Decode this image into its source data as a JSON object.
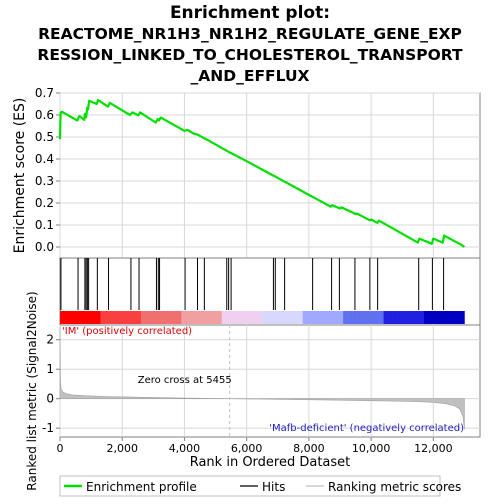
{
  "chart_data": {
    "type": "line",
    "title": "Enrichment plot:\nREACTOME_NR1H3_NR1H2_REGULATE_GENE_EXP\nRESSION_LINKED_TO_CHOLESTEROL_TRANSPORT\n_AND_EFFLUX",
    "title_lines": [
      "Enrichment plot:",
      "REACTOME_NR1H3_NR1H2_REGULATE_GENE_EXP",
      "RESSION_LINKED_TO_CHOLESTEROL_TRANSPORT",
      "_AND_EFFLUX"
    ],
    "xlabel": "Rank in Ordered Dataset",
    "xlim": [
      0,
      13500
    ],
    "x_ticks": [
      0,
      2000,
      4000,
      6000,
      8000,
      10000,
      12000
    ],
    "x_tick_labels": [
      "0",
      "2,000",
      "4,000",
      "6,000",
      "8,000",
      "10,000",
      "12,000"
    ],
    "colors": {
      "enrichment": "#00e000",
      "hits": "#000000",
      "metric_fill": "#c0c0c0",
      "grid": "#d8d8d8",
      "axis": "#808080",
      "zero_line": "#c0c0c0",
      "pos_label": "#e00000",
      "neg_label": "#2020c0"
    },
    "top_panel": {
      "ylabel": "Enrichment score (ES)",
      "ylim": [
        -0.05,
        0.7
      ],
      "y_ticks": [
        0.0,
        0.1,
        0.2,
        0.3,
        0.4,
        0.5,
        0.6,
        0.7
      ],
      "y_tick_labels": [
        "0.0",
        "0.1",
        "0.2",
        "0.3",
        "0.4",
        "0.5",
        "0.6",
        "0.7"
      ],
      "series": [
        {
          "name": "Enrichment profile",
          "x": [
            0,
            20,
            60,
            120,
            560,
            620,
            780,
            800,
            840,
            880,
            900,
            940,
            1180,
            1220,
            1540,
            1600,
            2250,
            2330,
            2520,
            2570,
            3080,
            3140,
            3180,
            3240,
            4000,
            4100,
            4300,
            4400,
            4500,
            4600,
            4700,
            5455,
            6000,
            6850,
            6900,
            7200,
            7250,
            8000,
            8200,
            8700,
            8750,
            9000,
            9050,
            9500,
            9550,
            9950,
            10000,
            10200,
            10250,
            11500,
            11550,
            11950,
            12000,
            12300,
            12350,
            12900,
            13000
          ],
          "y": [
            0.49,
            0.61,
            0.615,
            0.61,
            0.575,
            0.595,
            0.578,
            0.605,
            0.59,
            0.635,
            0.625,
            0.665,
            0.65,
            0.668,
            0.638,
            0.655,
            0.6,
            0.612,
            0.598,
            0.612,
            0.566,
            0.582,
            0.575,
            0.588,
            0.528,
            0.532,
            0.515,
            0.512,
            0.505,
            0.497,
            0.49,
            0.43,
            0.39,
            0.325,
            0.322,
            0.298,
            0.295,
            0.237,
            0.222,
            0.183,
            0.19,
            0.175,
            0.18,
            0.15,
            0.152,
            0.122,
            0.125,
            0.11,
            0.12,
            0.02,
            0.038,
            0.015,
            0.038,
            0.02,
            0.052,
            0.01,
            0.0
          ]
        }
      ]
    },
    "hits": {
      "name": "Hits",
      "x": [
        30,
        580,
        800,
        840,
        880,
        920,
        1200,
        1560,
        2280,
        2540,
        3100,
        3160,
        3200,
        4020,
        4420,
        4640,
        5360,
        5420,
        5500,
        6860,
        6920,
        7220,
        8120,
        8730,
        8980,
        9480,
        9960,
        10210,
        11530,
        11970,
        12330
      ]
    },
    "metric_panel": {
      "ylabel": "Ranked list metric (Signal2Noise)",
      "ylim": [
        -1.3,
        2.5
      ],
      "y_ticks": [
        -1,
        0,
        1,
        2
      ],
      "y_tick_labels": [
        "-1",
        "0",
        "1",
        "2"
      ],
      "series": [
        {
          "name": "Ranking metric scores",
          "x": [
            0,
            15,
            40,
            100,
            200,
            400,
            800,
            1500,
            2500,
            4000,
            5455,
            7000,
            9000,
            10500,
            11500,
            12000,
            12400,
            12700,
            12850,
            12950,
            13000
          ],
          "y": [
            2.45,
            0.55,
            0.32,
            0.22,
            0.17,
            0.13,
            0.1,
            0.075,
            0.05,
            0.02,
            0.0,
            -0.02,
            -0.05,
            -0.08,
            -0.1,
            -0.13,
            -0.17,
            -0.25,
            -0.35,
            -0.6,
            -1.05
          ]
        }
      ],
      "zero_cross_label": "Zero cross at 5455",
      "zero_cross": 5455,
      "pos_label": "'IM' (positively correlated)",
      "neg_label": "'Mafb-deficient' (negatively correlated)"
    },
    "heatmap_stops": [
      "#ff0000",
      "#f84040",
      "#f07070",
      "#f0a0a0",
      "#f0d0f0",
      "#d8d8ff",
      "#a0a8ff",
      "#6070f0",
      "#2020e0",
      "#0000c0"
    ],
    "legend": {
      "placement": "bottom",
      "entries": [
        "Enrichment profile",
        "Hits",
        "Ranking metric scores"
      ]
    }
  }
}
